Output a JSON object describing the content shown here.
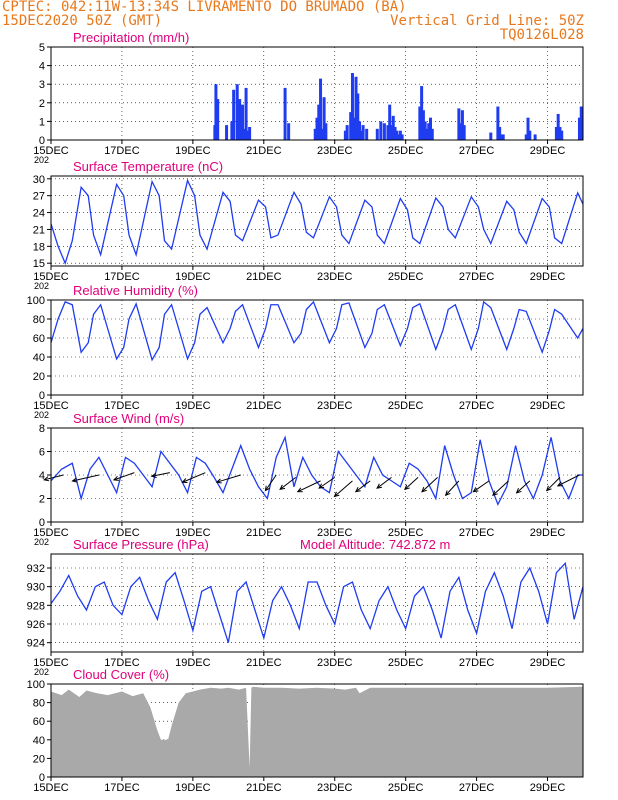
{
  "header": {
    "line1_left": "CPTEC:   042:11W-13:34S  LIVRAMENTO DO BRUMADO (BA)",
    "line2_left": "15DEC2020 50Z (GMT)",
    "line2_right": "Vertical Grid Line: 50Z",
    "line3_right": "TQ0126L028"
  },
  "colors": {
    "header": "#e8781c",
    "title": "#e0007c",
    "series": "#1f3cf0",
    "cloud": "#a9a9a9",
    "arrow": "#000000"
  },
  "x_axis": {
    "tick_labels": [
      "15DEC",
      "17DEC",
      "19DEC",
      "21DEC",
      "23DEC",
      "25DEC",
      "27DEC",
      "29DEC"
    ],
    "tick_days": [
      0,
      2,
      4,
      6,
      8,
      10,
      12,
      14
    ],
    "range_days": [
      0,
      15
    ],
    "edge_label": "202"
  },
  "chart_data": [
    {
      "type": "bar",
      "title": "Precipitation (mm/h)",
      "ylim": [
        0,
        5
      ],
      "yticks": [
        0,
        1,
        2,
        3,
        4,
        5
      ],
      "x_unit": "days since 15DEC",
      "x": [
        4.62,
        4.65,
        4.7,
        4.95,
        5.1,
        5.15,
        5.25,
        5.32,
        5.35,
        5.4,
        5.45,
        5.5,
        5.55,
        5.6,
        6.6,
        6.7,
        7.45,
        7.5,
        7.55,
        7.6,
        7.65,
        7.7,
        7.75,
        8.3,
        8.35,
        8.45,
        8.5,
        8.55,
        8.6,
        8.65,
        8.7,
        8.75,
        8.8,
        8.9,
        9.2,
        9.3,
        9.4,
        9.5,
        9.55,
        9.6,
        9.65,
        9.7,
        9.75,
        9.8,
        9.85,
        9.9,
        10.4,
        10.45,
        10.5,
        10.55,
        10.6,
        10.65,
        10.7,
        10.75,
        11.5,
        11.55,
        11.6,
        11.65,
        12.4,
        12.6,
        12.65,
        12.7,
        12.75,
        13.4,
        13.45,
        13.5,
        13.65,
        14.25,
        14.3,
        14.35,
        14.4,
        14.9,
        14.95
      ],
      "values": [
        0.8,
        3.0,
        2.2,
        0.8,
        1.0,
        2.7,
        3.0,
        2.2,
        1.5,
        1.9,
        0.6,
        2.8,
        0.5,
        0.7,
        2.8,
        0.9,
        0.6,
        1.2,
        1.9,
        3.3,
        0.6,
        2.3,
        0.9,
        0.5,
        0.8,
        1.5,
        3.6,
        1.2,
        3.4,
        2.5,
        1.0,
        0.5,
        0.8,
        0.6,
        0.6,
        1.0,
        0.9,
        0.8,
        1.9,
        0.8,
        1.3,
        0.7,
        0.5,
        0.3,
        0.5,
        0.3,
        1.8,
        2.9,
        1.6,
        1.0,
        0.6,
        0.9,
        1.2,
        0.6,
        1.7,
        0.9,
        1.6,
        0.8,
        0.4,
        1.8,
        0.7,
        0.3,
        0.3,
        0.3,
        1.2,
        0.5,
        0.3,
        0.7,
        1.4,
        0.7,
        0.5,
        1.2,
        1.8
      ]
    },
    {
      "type": "line",
      "title": "Surface Temperature (nC)",
      "ylim": [
        14.5,
        30.5
      ],
      "yticks": [
        15,
        18,
        21,
        24,
        27,
        30
      ],
      "x_unit": "days since 15DEC",
      "x": [
        0,
        0.2,
        0.4,
        0.6,
        0.85,
        1.05,
        1.2,
        1.4,
        1.85,
        2.05,
        2.2,
        2.4,
        2.85,
        3.05,
        3.2,
        3.4,
        3.85,
        4.05,
        4.2,
        4.4,
        4.85,
        5.05,
        5.2,
        5.4,
        5.85,
        6.05,
        6.2,
        6.4,
        6.85,
        7.05,
        7.2,
        7.4,
        7.85,
        8.05,
        8.2,
        8.4,
        8.85,
        9.05,
        9.2,
        9.4,
        9.85,
        10.05,
        10.2,
        10.4,
        10.85,
        11.05,
        11.2,
        11.4,
        11.85,
        12.05,
        12.2,
        12.4,
        12.85,
        13.05,
        13.2,
        13.4,
        13.85,
        14.05,
        14.2,
        14.4,
        14.85,
        15
      ],
      "values": [
        22,
        18,
        15,
        19,
        28.5,
        27,
        20,
        16.5,
        29,
        27,
        20,
        16.5,
        29.5,
        27,
        19,
        17.5,
        29.7,
        27,
        20,
        17.5,
        27.6,
        26,
        20,
        19,
        26.2,
        25,
        19.5,
        20,
        27.6,
        25.5,
        20.5,
        19.5,
        26.8,
        25,
        20,
        18.5,
        26.2,
        25,
        20,
        18.5,
        26.5,
        24.5,
        19.5,
        18.5,
        26.6,
        25,
        21,
        19.5,
        26.8,
        25,
        21,
        18.5,
        26,
        24.5,
        20.5,
        18.5,
        26.5,
        25,
        19.5,
        18.5,
        27.5,
        25.5
      ]
    },
    {
      "type": "line",
      "title": "Relative Humidity (%)",
      "ylim": [
        0,
        100
      ],
      "yticks": [
        0,
        20,
        40,
        60,
        80,
        100
      ],
      "x_unit": "days since 15DEC",
      "x": [
        0,
        0.2,
        0.4,
        0.6,
        0.85,
        1.05,
        1.2,
        1.4,
        1.85,
        2.05,
        2.2,
        2.4,
        2.85,
        3.05,
        3.2,
        3.4,
        3.85,
        4.05,
        4.2,
        4.4,
        4.85,
        5.05,
        5.2,
        5.4,
        5.85,
        6.05,
        6.2,
        6.4,
        6.85,
        7.05,
        7.2,
        7.4,
        7.85,
        8.05,
        8.2,
        8.4,
        8.85,
        9.05,
        9.2,
        9.4,
        9.85,
        10.05,
        10.2,
        10.4,
        10.85,
        11.05,
        11.2,
        11.4,
        11.85,
        12.05,
        12.2,
        12.4,
        12.85,
        13.05,
        13.2,
        13.4,
        13.85,
        14.05,
        14.2,
        14.4,
        14.85,
        15
      ],
      "values": [
        55,
        80,
        98,
        95,
        45,
        55,
        85,
        95,
        38,
        50,
        80,
        96,
        37,
        50,
        85,
        95,
        38,
        55,
        85,
        92,
        55,
        70,
        88,
        95,
        50,
        70,
        95,
        95,
        55,
        65,
        90,
        98,
        55,
        70,
        95,
        97,
        50,
        65,
        90,
        95,
        52,
        70,
        92,
        96,
        48,
        68,
        90,
        95,
        48,
        70,
        98,
        92,
        48,
        70,
        90,
        88,
        45,
        68,
        90,
        85,
        60,
        70
      ]
    },
    {
      "type": "line",
      "title": "Surface Wind (m/s)",
      "ylim": [
        0,
        8
      ],
      "yticks": [
        0,
        2,
        4,
        6,
        8
      ],
      "x_unit": "days since 15DEC",
      "x": [
        0,
        0.3,
        0.6,
        0.85,
        1.1,
        1.35,
        1.6,
        1.85,
        2.1,
        2.35,
        2.6,
        2.85,
        3.1,
        3.35,
        3.6,
        3.85,
        4.1,
        4.35,
        4.6,
        4.85,
        5.1,
        5.35,
        5.6,
        5.85,
        6.1,
        6.35,
        6.6,
        6.85,
        7.1,
        7.35,
        7.6,
        7.85,
        8.1,
        8.35,
        8.6,
        8.85,
        9.1,
        9.35,
        9.6,
        9.85,
        10.1,
        10.35,
        10.6,
        10.85,
        11.1,
        11.35,
        11.6,
        11.85,
        12.1,
        12.35,
        12.6,
        12.85,
        13.1,
        13.35,
        13.6,
        13.85,
        14.1,
        14.35,
        14.6,
        14.85,
        15
      ],
      "values": [
        3.5,
        4.5,
        5.0,
        2.0,
        4.5,
        5.5,
        4.0,
        2.5,
        5.5,
        5.0,
        4.0,
        3.0,
        6.0,
        5.0,
        4.0,
        2.5,
        5.5,
        5.0,
        3.8,
        2.5,
        4.5,
        6.5,
        4.5,
        3.0,
        2.0,
        5.5,
        7.2,
        3.0,
        5.5,
        4.0,
        3.0,
        2.5,
        6.0,
        5.0,
        4.0,
        3.0,
        5.5,
        4.0,
        3.5,
        3.0,
        5.0,
        4.5,
        3.5,
        2.0,
        6.5,
        4.0,
        2.0,
        2.5,
        7.0,
        3.5,
        1.5,
        3.0,
        6.5,
        3.5,
        2.0,
        4.0,
        7.2,
        3.5,
        2.0,
        4.0,
        4.0
      ],
      "arrows": {
        "x": [
          0.35,
          1.35,
          2.35,
          3.35,
          4.35,
          5.35,
          6.35,
          6.9,
          7.6,
          8.0,
          8.5,
          9.0,
          9.6,
          10.35,
          10.9,
          11.5,
          12.35,
          12.9,
          13.5,
          14.35,
          14.9
        ],
        "y": [
          4.0,
          4.0,
          4.2,
          4.2,
          4.2,
          4.0,
          4.0,
          3.8,
          3.5,
          3.8,
          3.5,
          3.5,
          3.8,
          3.8,
          3.8,
          3.5,
          3.5,
          3.5,
          3.5,
          3.8,
          4.0
        ],
        "u": [
          -1.6,
          -2.2,
          -1.7,
          -1.5,
          -1.9,
          -2.0,
          -0.9,
          -1.3,
          -1.9,
          -1.3,
          -1.5,
          -1.2,
          -1.2,
          -1.1,
          -1.3,
          -1.1,
          -1.3,
          -1.3,
          -1.1,
          -1.1,
          -1.8
        ],
        "v": [
          -0.4,
          -0.5,
          -0.6,
          -0.3,
          -0.8,
          -0.6,
          -1.3,
          -1.0,
          -0.9,
          -0.9,
          -1.3,
          -0.9,
          -0.9,
          -1.0,
          -1.2,
          -1.2,
          -0.9,
          -1.2,
          -1.0,
          -1.1,
          -0.9
        ]
      }
    },
    {
      "type": "line",
      "title": "Surface Pressure (hPa)",
      "subtitle": "Model Altitude: 742.872 m",
      "ylim": [
        923,
        933.5
      ],
      "yticks": [
        924,
        926,
        928,
        930,
        932
      ],
      "x_unit": "days since 15DEC",
      "x": [
        0,
        0.25,
        0.5,
        0.75,
        1.0,
        1.25,
        1.5,
        1.75,
        2.0,
        2.25,
        2.5,
        2.75,
        3.0,
        3.25,
        3.5,
        3.75,
        4.0,
        4.25,
        4.5,
        4.75,
        5.0,
        5.25,
        5.5,
        5.75,
        6.0,
        6.25,
        6.5,
        6.75,
        7.0,
        7.25,
        7.5,
        7.75,
        8.0,
        8.25,
        8.5,
        8.75,
        9.0,
        9.25,
        9.5,
        9.75,
        10.0,
        10.25,
        10.5,
        10.75,
        11.0,
        11.25,
        11.5,
        11.75,
        12.0,
        12.25,
        12.5,
        12.75,
        13.0,
        13.25,
        13.5,
        13.75,
        14.0,
        14.25,
        14.5,
        14.75,
        15
      ],
      "values": [
        928.2,
        929.5,
        931.2,
        929.0,
        927.5,
        930.0,
        930.5,
        928.0,
        927.0,
        930.0,
        931.0,
        928.5,
        926.5,
        930.5,
        931.5,
        928.5,
        925.3,
        929.5,
        930.0,
        927.0,
        924.0,
        929.5,
        930.5,
        927.5,
        924.5,
        928.5,
        930.0,
        928.0,
        925.5,
        930.5,
        930.5,
        928.0,
        926.0,
        930.0,
        930.5,
        927.5,
        925.5,
        928.5,
        930.0,
        927.5,
        925.5,
        929.0,
        930.0,
        927.5,
        924.5,
        929.5,
        931.0,
        927.5,
        925.0,
        929.5,
        931.5,
        929.0,
        925.5,
        930.5,
        932.0,
        929.5,
        926.0,
        931.5,
        932.5,
        926.5,
        930.0
      ]
    },
    {
      "type": "area",
      "title": "Cloud Cover (%)",
      "ylim": [
        0,
        100
      ],
      "yticks": [
        0,
        20,
        40,
        60,
        80,
        100
      ],
      "x_unit": "days since 15DEC",
      "x": [
        0,
        0.3,
        0.5,
        0.8,
        1.0,
        1.3,
        1.6,
        2.0,
        2.3,
        2.6,
        2.8,
        3.0,
        3.1,
        3.3,
        3.4,
        3.6,
        3.8,
        4.0,
        4.2,
        4.5,
        4.8,
        5.0,
        5.3,
        5.5,
        5.6,
        5.65,
        5.7,
        6.0,
        6.5,
        7.0,
        7.5,
        8.0,
        8.3,
        8.6,
        8.7,
        9.0,
        10.0,
        11.0,
        12.0,
        13.0,
        14.0,
        15.0
      ],
      "values": [
        92,
        88,
        94,
        86,
        93,
        90,
        88,
        92,
        87,
        90,
        75,
        50,
        40,
        40,
        55,
        80,
        90,
        92,
        94,
        96,
        95,
        96,
        94,
        96,
        10,
        96,
        97,
        96,
        96,
        95,
        96,
        95,
        94,
        96,
        90,
        96,
        96,
        96,
        96,
        96,
        96,
        97
      ]
    }
  ]
}
